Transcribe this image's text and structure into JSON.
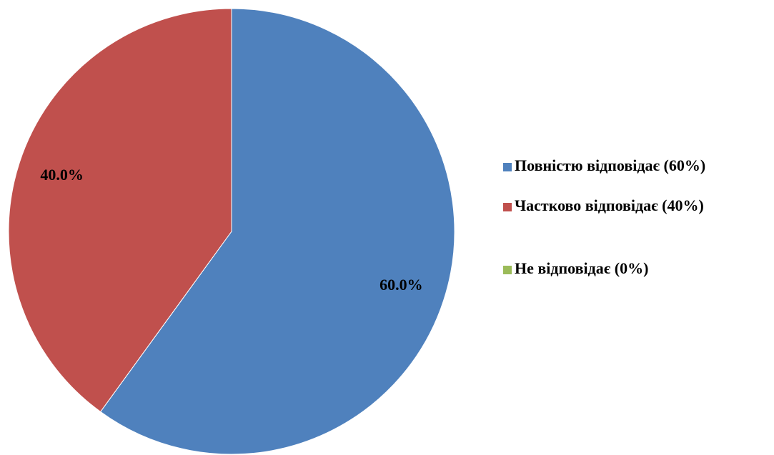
{
  "chart_data": {
    "type": "pie",
    "categories": [
      "Повністю відповідає (60%)",
      "Частково відповідає (40%)",
      "Не відповідає (0%)"
    ],
    "values": [
      60,
      40,
      0
    ],
    "value_labels": [
      "60.0%",
      "40.0%",
      null
    ],
    "colors": [
      "#4f81bd",
      "#c0504d",
      "#9bbb59"
    ],
    "legend": "right"
  }
}
